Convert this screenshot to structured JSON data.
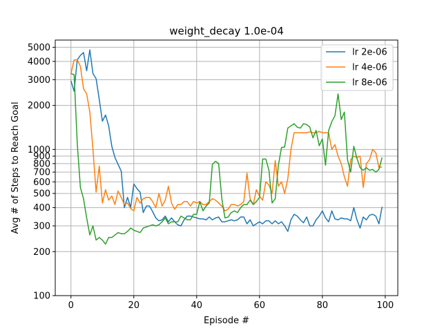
{
  "chart_data": {
    "type": "line",
    "title": "weight_decay 1.0e-04",
    "xlabel": "Episode #",
    "ylabel": "Avg # of Steps to Reach Goal",
    "y_scale": "log",
    "xlim": [
      -5,
      104
    ],
    "ylim": [
      100,
      5600
    ],
    "grid": true,
    "legend_position": "top-right",
    "x_ticks": [
      0,
      20,
      40,
      60,
      80,
      100
    ],
    "x_tick_labels": [
      "0",
      "20",
      "40",
      "60",
      "80",
      "100"
    ],
    "y_ticks": [
      100,
      200,
      300,
      400,
      500,
      600,
      700,
      800,
      900,
      1000,
      2000,
      3000,
      4000,
      5000
    ],
    "y_tick_labels": [
      "100",
      "200",
      "300",
      "400",
      "500",
      "600",
      "700",
      "800",
      "900",
      "1000",
      "2000",
      "3000",
      "4000",
      "5000"
    ],
    "series": [
      {
        "name": "lr 2e-06",
        "color": "#1f77b4",
        "values": [
          2950,
          2500,
          4100,
          4400,
          4600,
          3450,
          4800,
          3300,
          3050,
          2200,
          1560,
          1720,
          1450,
          1050,
          880,
          790,
          710,
          400,
          470,
          400,
          580,
          540,
          510,
          370,
          410,
          410,
          375,
          340,
          325,
          330,
          350,
          320,
          340,
          320,
          305,
          300,
          330,
          350,
          350,
          345,
          340,
          335,
          335,
          330,
          345,
          330,
          340,
          345,
          320,
          320,
          325,
          330,
          325,
          330,
          345,
          345,
          310,
          330,
          300,
          310,
          320,
          310,
          325,
          325,
          310,
          325,
          310,
          320,
          300,
          275,
          330,
          360,
          350,
          330,
          315,
          345,
          300,
          300,
          330,
          350,
          380,
          340,
          320,
          380,
          335,
          330,
          340,
          335,
          335,
          325,
          400,
          330,
          290,
          345,
          330,
          355,
          360,
          350,
          310,
          405
        ]
      },
      {
        "name": "lr 4e-06",
        "color": "#ff7f0e",
        "values": [
          3300,
          4100,
          4100,
          3700,
          2600,
          2400,
          1800,
          1000,
          510,
          770,
          430,
          530,
          450,
          480,
          420,
          520,
          470,
          420,
          430,
          395,
          380,
          470,
          430,
          460,
          470,
          470,
          440,
          400,
          500,
          410,
          450,
          560,
          430,
          390,
          420,
          420,
          440,
          440,
          410,
          440,
          430,
          440,
          420,
          420,
          440,
          460,
          450,
          430,
          410,
          380,
          390,
          420,
          420,
          410,
          420,
          440,
          690,
          460,
          420,
          530,
          480,
          450,
          600,
          570,
          500,
          840,
          560,
          600,
          500,
          630,
          1000,
          1300,
          1300,
          1300,
          1300,
          1300,
          1320,
          1300,
          1300,
          1330,
          1300,
          1300,
          1300,
          1000,
          1080,
          900,
          800,
          650,
          560,
          850,
          900,
          880,
          900,
          550,
          800,
          850,
          1000,
          950,
          750,
          760
        ]
      },
      {
        "name": "lr 8e-06",
        "color": "#2ca02c",
        "values": [
          3300,
          3250,
          1100,
          550,
          460,
          340,
          260,
          300,
          240,
          250,
          240,
          225,
          250,
          250,
          260,
          270,
          265,
          265,
          275,
          290,
          280,
          275,
          270,
          290,
          295,
          300,
          305,
          300,
          305,
          320,
          340,
          310,
          320,
          320,
          320,
          350,
          340,
          330,
          330,
          360,
          360,
          440,
          380,
          410,
          430,
          790,
          830,
          800,
          460,
          340,
          345,
          370,
          380,
          370,
          400,
          420,
          420,
          450,
          420,
          440,
          470,
          860,
          860,
          720,
          430,
          460,
          780,
          1030,
          1040,
          1400,
          1450,
          1500,
          1420,
          1400,
          1500,
          1480,
          1420,
          1200,
          1350,
          1060,
          1180,
          780,
          1350,
          1550,
          1700,
          2400,
          1600,
          1800,
          850,
          700,
          1050,
          870,
          750,
          720,
          750,
          720,
          730,
          700,
          730,
          880
        ]
      }
    ]
  }
}
